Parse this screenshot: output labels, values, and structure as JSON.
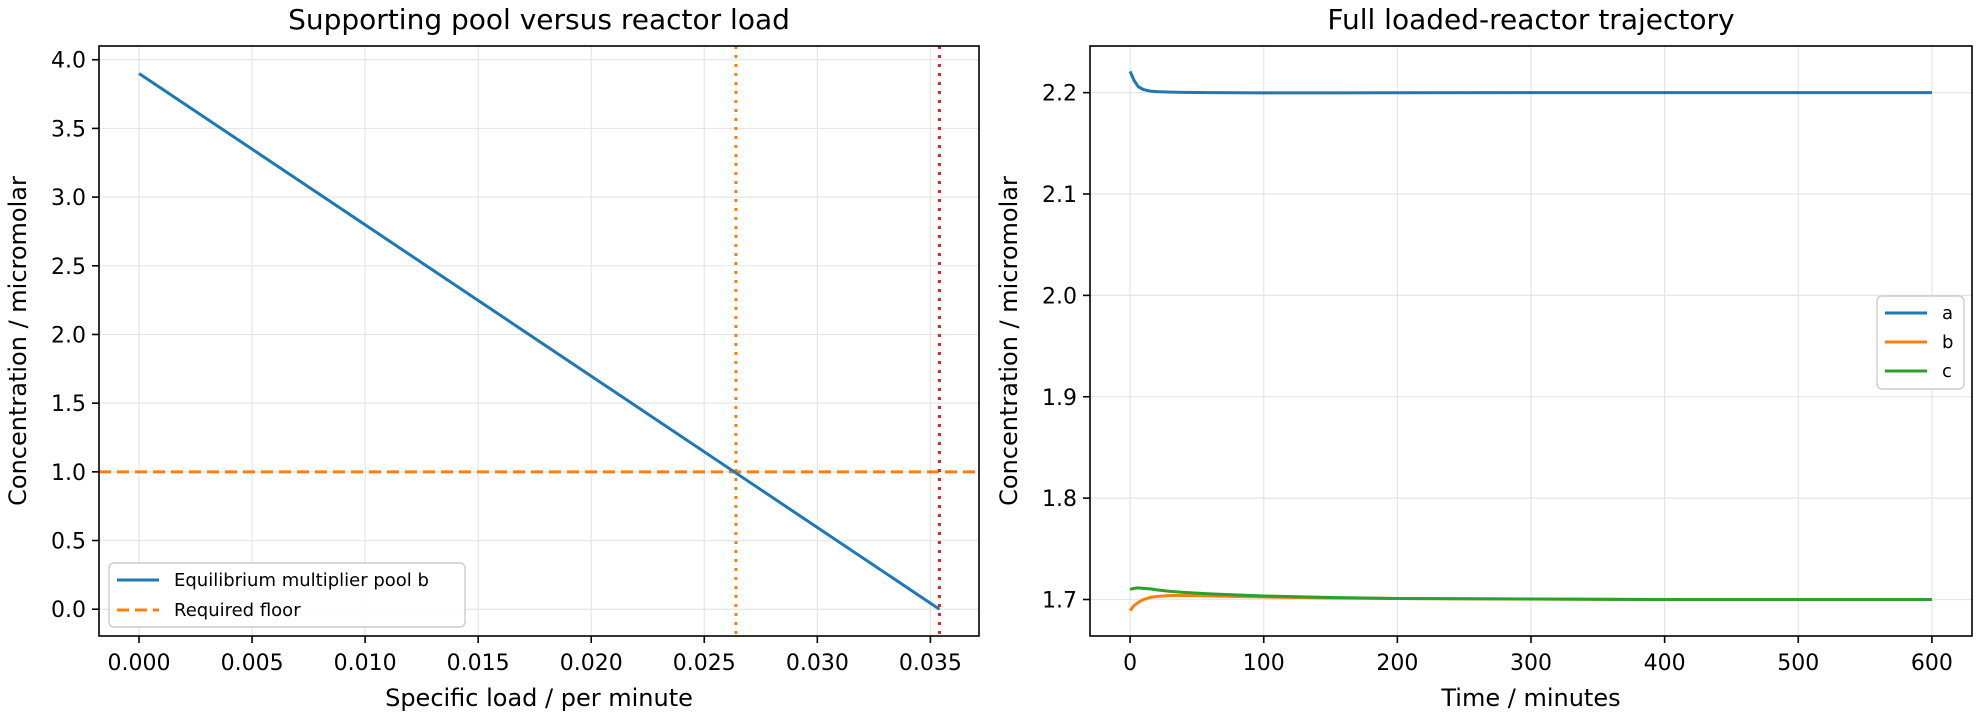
{
  "chart_data": [
    {
      "type": "line",
      "title": "Supporting pool versus reactor load",
      "xlabel": "Specific load / per minute",
      "ylabel": "Concentration / micromolar",
      "xlim": [
        -0.00177,
        0.03715
      ],
      "ylim": [
        -0.195,
        4.1
      ],
      "xticks": [
        0.0,
        0.005,
        0.01,
        0.015,
        0.02,
        0.025,
        0.03,
        0.035
      ],
      "xtick_labels": [
        "0.000",
        "0.005",
        "0.010",
        "0.015",
        "0.020",
        "0.025",
        "0.030",
        "0.035"
      ],
      "yticks": [
        0.0,
        0.5,
        1.0,
        1.5,
        2.0,
        2.5,
        3.0,
        3.5,
        4.0
      ],
      "ytick_labels": [
        "0.0",
        "0.5",
        "1.0",
        "1.5",
        "2.0",
        "2.5",
        "3.0",
        "3.5",
        "4.0"
      ],
      "grid": true,
      "legend_position": "lower-left",
      "series": [
        {
          "name": "Equilibrium multiplier pool b",
          "color": "#1f77b4",
          "style": "solid",
          "x": [
            0.0,
            0.0354
          ],
          "y": [
            3.9,
            0.0
          ]
        }
      ],
      "hlines": [
        {
          "name": "Required floor",
          "y": 1.0,
          "color": "#ff7f0e",
          "style": "dashed"
        }
      ],
      "vlines": [
        {
          "x": 0.0264,
          "color": "#ff7f0e",
          "style": "dotted"
        },
        {
          "x": 0.0354,
          "color": "#d62728",
          "style": "dotted"
        }
      ]
    },
    {
      "type": "line",
      "title": "Full loaded-reactor trajectory",
      "xlabel": "Time / minutes",
      "ylabel": "Concentration / micromolar",
      "xlim": [
        -30,
        630
      ],
      "ylim": [
        1.664,
        2.246
      ],
      "xticks": [
        0,
        100,
        200,
        300,
        400,
        500,
        600
      ],
      "xtick_labels": [
        "0",
        "100",
        "200",
        "300",
        "400",
        "500",
        "600"
      ],
      "yticks": [
        1.7,
        1.8,
        1.9,
        2.0,
        2.1,
        2.2
      ],
      "ytick_labels": [
        "1.7",
        "1.8",
        "1.9",
        "2.0",
        "2.1",
        "2.2"
      ],
      "grid": true,
      "legend_position": "center-right",
      "series": [
        {
          "name": "a",
          "color": "#1f77b4",
          "x": [
            0,
            3,
            6,
            10,
            15,
            20,
            30,
            40,
            60,
            100,
            150,
            200,
            300,
            400,
            500,
            600
          ],
          "y": [
            2.221,
            2.212,
            2.206,
            2.203,
            2.2015,
            2.201,
            2.2005,
            2.2002,
            2.2,
            2.1998,
            2.1998,
            2.1999,
            2.2,
            2.2,
            2.2,
            2.2
          ]
        },
        {
          "name": "b",
          "color": "#ff7f0e",
          "x": [
            0,
            3,
            6,
            10,
            15,
            20,
            30,
            40,
            60,
            100,
            150,
            200,
            300,
            400,
            500,
            600
          ],
          "y": [
            1.689,
            1.694,
            1.697,
            1.7,
            1.702,
            1.703,
            1.704,
            1.704,
            1.7035,
            1.7025,
            1.7015,
            1.701,
            1.7005,
            1.7,
            1.7,
            1.7
          ]
        },
        {
          "name": "c",
          "color": "#2ca02c",
          "x": [
            0,
            3,
            6,
            10,
            15,
            20,
            30,
            40,
            60,
            100,
            150,
            200,
            300,
            400,
            500,
            600
          ],
          "y": [
            1.71,
            1.711,
            1.7115,
            1.711,
            1.7105,
            1.7095,
            1.708,
            1.707,
            1.7055,
            1.7035,
            1.702,
            1.701,
            1.7005,
            1.7,
            1.7,
            1.7
          ]
        }
      ]
    }
  ]
}
